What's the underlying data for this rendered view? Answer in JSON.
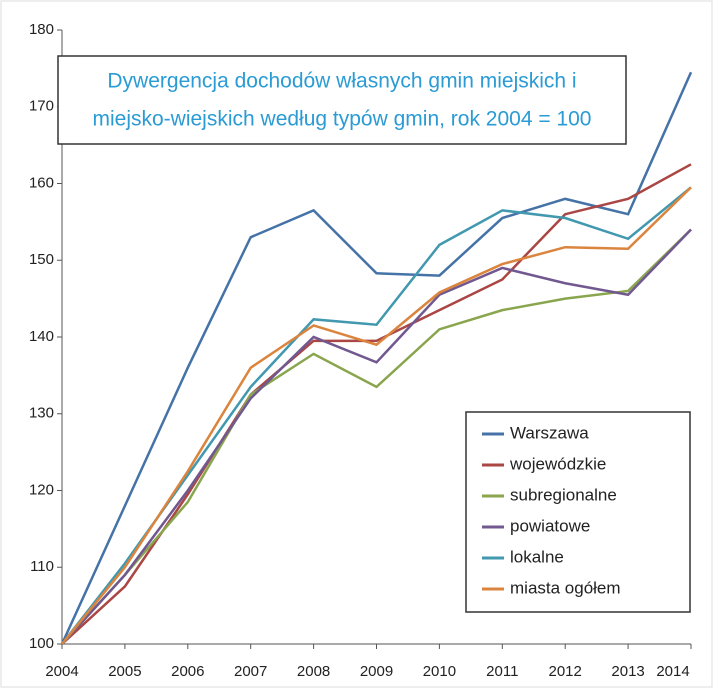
{
  "chart_data": {
    "type": "line",
    "title": [
      "Dywergencja dochodów własnych gmin miejskich i",
      "miejsko-wiejskich według typów gmin, rok 2004 = 100"
    ],
    "x": [
      2004,
      2005,
      2006,
      2007,
      2008,
      2009,
      2010,
      2011,
      2012,
      2013,
      2014
    ],
    "xlim": [
      2004,
      2014
    ],
    "xticks": [
      2004,
      2005,
      2006,
      2007,
      2008,
      2009,
      2010,
      2011,
      2012,
      2013,
      2014
    ],
    "ylim": [
      100,
      180
    ],
    "yticks": [
      100,
      110,
      120,
      130,
      140,
      150,
      160,
      170,
      180
    ],
    "grid": false,
    "legend": "lower right",
    "series": [
      {
        "name": "Warszawa",
        "color": "#4572a7",
        "values": [
          100,
          118,
          136,
          153,
          156.5,
          148.3,
          148,
          155.5,
          158,
          156,
          174.5
        ]
      },
      {
        "name": "wojewódzkie",
        "color": "#aa4643",
        "values": [
          100,
          107.5,
          119.5,
          132.5,
          139.5,
          139.5,
          143.5,
          147.5,
          156,
          158,
          162.5
        ]
      },
      {
        "name": "subregionalne",
        "color": "#89a54e",
        "values": [
          100,
          109,
          118.5,
          132.5,
          137.8,
          133.5,
          141,
          143.5,
          145,
          146,
          154
        ]
      },
      {
        "name": "powiatowe",
        "color": "#71588f",
        "values": [
          100,
          109,
          120,
          132,
          140,
          136.7,
          145.5,
          149,
          147,
          145.5,
          154
        ]
      },
      {
        "name": "lokalne",
        "color": "#4198af",
        "values": [
          100,
          110.5,
          122,
          133.5,
          142.3,
          141.6,
          152,
          156.5,
          155.5,
          152.8,
          159.5
        ]
      },
      {
        "name": "miasta ogółem",
        "color": "#db843d",
        "values": [
          100,
          110,
          122.5,
          136,
          141.5,
          139,
          145.8,
          149.5,
          151.7,
          151.5,
          159.5
        ]
      }
    ]
  }
}
